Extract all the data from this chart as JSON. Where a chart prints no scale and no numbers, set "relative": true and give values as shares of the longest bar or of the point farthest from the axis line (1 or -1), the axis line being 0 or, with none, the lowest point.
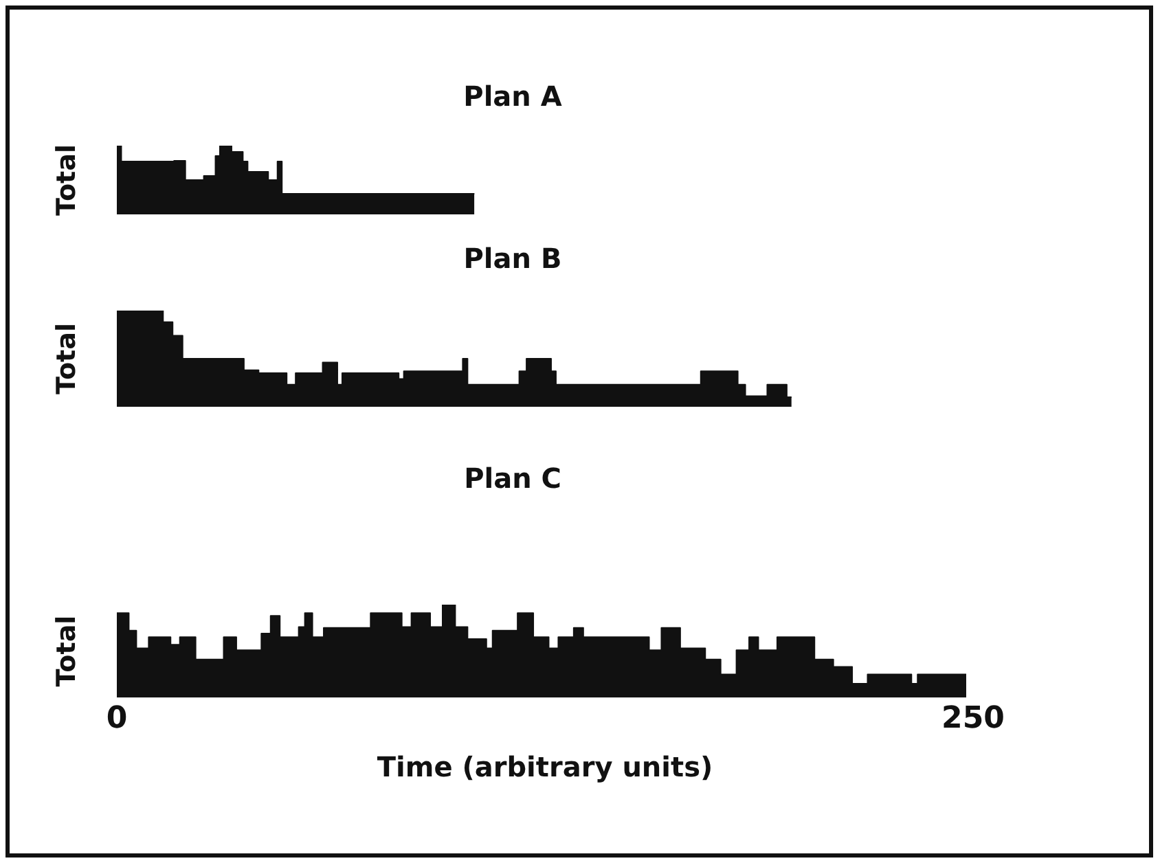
{
  "chart_data": [
    {
      "type": "area",
      "title": "Plan A",
      "ylabel": "Total",
      "relative": true,
      "xlim": [
        0,
        250
      ],
      "tick_labels": false,
      "series": [
        {
          "color": "#111111",
          "x": [
            0,
            1.3,
            1.3,
            16.7,
            16.7,
            20,
            20,
            25.4,
            25.4,
            28.8,
            28.8,
            30.1,
            30.1,
            33.5,
            33.5,
            36.8,
            36.8,
            38.2,
            38.2,
            44.2,
            44.2,
            46.9,
            46.9,
            48.2,
            48.2,
            104.4
          ],
          "values": [
            1,
            1,
            0.77,
            0.77,
            0.78,
            0.78,
            0.5,
            0.5,
            0.56,
            0.56,
            0.85,
            0.85,
            1,
            1,
            0.91,
            0.91,
            0.77,
            0.77,
            0.62,
            0.62,
            0.5,
            0.5,
            0.77,
            0.77,
            0.3,
            0.3
          ]
        }
      ]
    },
    {
      "type": "area",
      "title": "Plan B",
      "ylabel": "Total",
      "relative": true,
      "xlim": [
        0,
        250
      ],
      "tick_labels": false,
      "series": [
        {
          "color": "#111111",
          "x": [
            0,
            13.5,
            13.5,
            16.3,
            16.3,
            19.2,
            19.2,
            37.1,
            37.1,
            41.4,
            41.4,
            49.6,
            49.6,
            52.2,
            52.2,
            60.1,
            60.1,
            64.4,
            64.4,
            65.8,
            65.8,
            82.3,
            82.3,
            83.8,
            83.8,
            101,
            101,
            102.4,
            102.4,
            117.5,
            117.5,
            119.6,
            119.6,
            126.8,
            126.8,
            128.2,
            128.2,
            170.5,
            170.5,
            181.3,
            181.3,
            183.5,
            183.5,
            189.9,
            189.9,
            195.6,
            195.6,
            197
          ],
          "values": [
            1,
            1,
            0.88,
            0.88,
            0.74,
            0.74,
            0.5,
            0.5,
            0.38,
            0.38,
            0.35,
            0.35,
            0.23,
            0.23,
            0.35,
            0.35,
            0.46,
            0.46,
            0.23,
            0.23,
            0.35,
            0.35,
            0.29,
            0.29,
            0.37,
            0.37,
            0.5,
            0.5,
            0.23,
            0.23,
            0.37,
            0.37,
            0.5,
            0.5,
            0.37,
            0.37,
            0.23,
            0.23,
            0.37,
            0.37,
            0.23,
            0.23,
            0.11,
            0.11,
            0.23,
            0.23,
            0.1,
            0.1
          ]
        }
      ]
    },
    {
      "type": "area",
      "title": "Plan C",
      "ylabel": "Total",
      "xlabel": "Time (arbitrary units)",
      "relative": true,
      "xlim": [
        0,
        250
      ],
      "xticks": [
        0,
        250
      ],
      "tick_labels": "x",
      "series": [
        {
          "color": "#111111",
          "x": [
            0,
            3.5,
            3.5,
            5.7,
            5.7,
            9.3,
            9.3,
            15.7,
            15.7,
            18.4,
            18.4,
            23,
            23,
            31.2,
            31.2,
            34.9,
            34.9,
            42.2,
            42.2,
            44.9,
            44.9,
            47.6,
            47.6,
            53.1,
            53.1,
            54.9,
            54.9,
            57.1,
            57.1,
            60.4,
            60.4,
            74.1,
            74.1,
            83.2,
            83.2,
            86,
            86,
            91.5,
            91.5,
            95.1,
            95.1,
            98.8,
            98.8,
            102.4,
            102.4,
            107.9,
            107.9,
            109.7,
            109.7,
            117,
            117,
            121.6,
            121.6,
            126.1,
            126.1,
            128.9,
            128.9,
            133.4,
            133.4,
            136.2,
            136.2,
            155.4,
            155.4,
            159,
            159,
            164.5,
            164.5,
            171.8,
            171.8,
            176.3,
            176.3,
            180.9,
            180.9,
            184.6,
            184.6,
            187.3,
            187.3,
            192.8,
            192.8,
            203.7,
            203.7,
            209.2,
            209.2,
            214.7,
            214.7,
            219.2,
            219.2,
            232,
            232,
            233.8,
            233.8,
            248
          ],
          "values": [
            0.91,
            0.91,
            0.72,
            0.72,
            0.53,
            0.53,
            0.65,
            0.65,
            0.57,
            0.57,
            0.65,
            0.65,
            0.41,
            0.41,
            0.65,
            0.65,
            0.51,
            0.51,
            0.69,
            0.69,
            0.88,
            0.88,
            0.65,
            0.65,
            0.76,
            0.76,
            0.91,
            0.91,
            0.65,
            0.65,
            0.75,
            0.75,
            0.91,
            0.91,
            0.76,
            0.76,
            0.91,
            0.91,
            0.76,
            0.76,
            1,
            1,
            0.76,
            0.76,
            0.63,
            0.63,
            0.53,
            0.53,
            0.72,
            0.72,
            0.91,
            0.91,
            0.65,
            0.65,
            0.53,
            0.53,
            0.65,
            0.65,
            0.75,
            0.75,
            0.65,
            0.65,
            0.51,
            0.51,
            0.75,
            0.75,
            0.53,
            0.53,
            0.41,
            0.41,
            0.25,
            0.25,
            0.51,
            0.51,
            0.65,
            0.65,
            0.51,
            0.51,
            0.65,
            0.65,
            0.41,
            0.41,
            0.33,
            0.33,
            0.15,
            0.15,
            0.25,
            0.25,
            0.15,
            0.15,
            0.25,
            0.25
          ]
        }
      ]
    }
  ]
}
